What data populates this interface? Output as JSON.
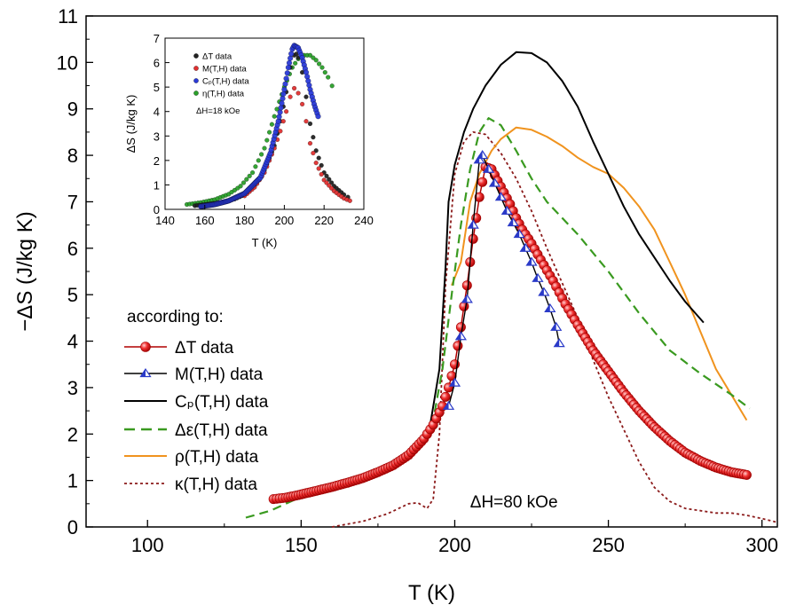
{
  "chart_data": {
    "type": "line",
    "main": {
      "xlabel": "T (K)",
      "ylabel": "−ΔS (J/kg K)",
      "xlim": [
        80,
        305
      ],
      "ylim": [
        0,
        11
      ],
      "xticks": [
        100,
        150,
        200,
        250,
        300
      ],
      "yticks": [
        0,
        1,
        2,
        3,
        4,
        5,
        6,
        7,
        8,
        9,
        10,
        11
      ],
      "legend_title": "according to:",
      "legend_position": "left",
      "annotation": "ΔH=80 kOe",
      "series": [
        {
          "name": "ΔT data",
          "style": "red-spheres",
          "color": "#e02020",
          "points": [
            [
              141,
              0.6
            ],
            [
              145,
              0.63
            ],
            [
              150,
              0.7
            ],
            [
              155,
              0.78
            ],
            [
              160,
              0.86
            ],
            [
              165,
              0.95
            ],
            [
              170,
              1.05
            ],
            [
              175,
              1.18
            ],
            [
              180,
              1.33
            ],
            [
              185,
              1.55
            ],
            [
              190,
              1.9
            ],
            [
              193,
              2.2
            ],
            [
              196,
              2.6
            ],
            [
              198,
              3.0
            ],
            [
              200,
              3.5
            ],
            [
              202,
              4.3
            ],
            [
              204,
              5.2
            ],
            [
              206,
              6.2
            ],
            [
              208,
              7.1
            ],
            [
              210,
              7.75
            ],
            [
              212,
              7.7
            ],
            [
              214,
              7.45
            ],
            [
              216,
              7.2
            ],
            [
              218,
              6.95
            ],
            [
              220,
              6.65
            ],
            [
              222,
              6.4
            ],
            [
              225,
              6.1
            ],
            [
              228,
              5.75
            ],
            [
              232,
              5.3
            ],
            [
              236,
              4.8
            ],
            [
              240,
              4.35
            ],
            [
              245,
              3.8
            ],
            [
              250,
              3.35
            ],
            [
              255,
              2.9
            ],
            [
              260,
              2.5
            ],
            [
              265,
              2.15
            ],
            [
              270,
              1.85
            ],
            [
              275,
              1.6
            ],
            [
              280,
              1.42
            ],
            [
              285,
              1.28
            ],
            [
              290,
              1.18
            ],
            [
              295,
              1.12
            ]
          ]
        },
        {
          "name": "M(T,H) data",
          "style": "blue-triangles",
          "color": "#3050d0",
          "points": [
            [
              198,
              2.6
            ],
            [
              200,
              3.1
            ],
            [
              202,
              4.1
            ],
            [
              204,
              4.9
            ],
            [
              206,
              6.5
            ],
            [
              208,
              7.9
            ],
            [
              209,
              8.0
            ],
            [
              211,
              7.7
            ],
            [
              213,
              7.4
            ],
            [
              215,
              7.1
            ],
            [
              217,
              6.8
            ],
            [
              219,
              6.55
            ],
            [
              221,
              6.3
            ],
            [
              223,
              6.0
            ],
            [
              225,
              5.7
            ],
            [
              227,
              5.35
            ],
            [
              229,
              5.05
            ],
            [
              231,
              4.7
            ],
            [
              233,
              4.3
            ],
            [
              234,
              3.95
            ]
          ]
        },
        {
          "name": "Cₚ(T,H) data",
          "style": "solid",
          "color": "#000000",
          "points": [
            [
              150,
              0.72
            ],
            [
              160,
              0.87
            ],
            [
              170,
              1.05
            ],
            [
              180,
              1.3
            ],
            [
              188,
              1.7
            ],
            [
              192,
              2.2
            ],
            [
              195,
              3.4
            ],
            [
              197,
              5.6
            ],
            [
              198,
              7.0
            ],
            [
              200,
              7.8
            ],
            [
              203,
              8.5
            ],
            [
              206,
              9.0
            ],
            [
              210,
              9.5
            ],
            [
              215,
              9.95
            ],
            [
              220,
              10.22
            ],
            [
              225,
              10.2
            ],
            [
              230,
              10.0
            ],
            [
              235,
              9.6
            ],
            [
              240,
              9.05
            ],
            [
              245,
              8.3
            ],
            [
              250,
              7.6
            ],
            [
              255,
              6.9
            ],
            [
              260,
              6.3
            ],
            [
              265,
              5.8
            ],
            [
              270,
              5.3
            ],
            [
              275,
              4.85
            ],
            [
              281,
              4.4
            ]
          ]
        },
        {
          "name": "Δε(T,H) data",
          "style": "dashed",
          "color": "#3a9a20",
          "points": [
            [
              132,
              0.2
            ],
            [
              140,
              0.35
            ],
            [
              150,
              0.65
            ],
            [
              160,
              0.9
            ],
            [
              170,
              1.1
            ],
            [
              180,
              1.35
            ],
            [
              186,
              1.55
            ],
            [
              190,
              1.9
            ],
            [
              193,
              2.3
            ],
            [
              196,
              3.4
            ],
            [
              199,
              5.0
            ],
            [
              202,
              6.5
            ],
            [
              205,
              7.7
            ],
            [
              208,
              8.5
            ],
            [
              211,
              8.8
            ],
            [
              215,
              8.65
            ],
            [
              220,
              8.1
            ],
            [
              225,
              7.5
            ],
            [
              230,
              7.0
            ],
            [
              240,
              6.3
            ],
            [
              250,
              5.5
            ],
            [
              260,
              4.6
            ],
            [
              270,
              3.8
            ],
            [
              280,
              3.3
            ],
            [
              290,
              2.85
            ],
            [
              296,
              2.55
            ]
          ]
        },
        {
          "name": "ρ(T,H) data",
          "style": "solid",
          "color": "#f0931e",
          "points": [
            [
              199,
              5.2
            ],
            [
              202,
              5.7
            ],
            [
              205,
              7.0
            ],
            [
              208,
              7.6
            ],
            [
              212,
              8.1
            ],
            [
              215,
              8.35
            ],
            [
              220,
              8.6
            ],
            [
              225,
              8.55
            ],
            [
              230,
              8.4
            ],
            [
              235,
              8.2
            ],
            [
              240,
              7.95
            ],
            [
              245,
              7.75
            ],
            [
              250,
              7.6
            ],
            [
              255,
              7.3
            ],
            [
              260,
              6.9
            ],
            [
              265,
              6.4
            ],
            [
              270,
              5.7
            ],
            [
              275,
              5.0
            ],
            [
              280,
              4.2
            ],
            [
              285,
              3.4
            ],
            [
              290,
              2.85
            ],
            [
              295,
              2.3
            ]
          ]
        },
        {
          "name": "κ(T,H) data",
          "style": "dotted",
          "color": "#8b1a1a",
          "points": [
            [
              160,
              0.0
            ],
            [
              170,
              0.12
            ],
            [
              178,
              0.28
            ],
            [
              185,
              0.5
            ],
            [
              188,
              0.52
            ],
            [
              191,
              0.4
            ],
            [
              193,
              0.6
            ],
            [
              195,
              2.0
            ],
            [
              197,
              5.2
            ],
            [
              200,
              7.6
            ],
            [
              203,
              8.3
            ],
            [
              206,
              8.5
            ],
            [
              210,
              8.45
            ],
            [
              215,
              8.05
            ],
            [
              220,
              7.5
            ],
            [
              225,
              6.8
            ],
            [
              230,
              6.0
            ],
            [
              235,
              5.25
            ],
            [
              240,
              4.5
            ],
            [
              245,
              3.6
            ],
            [
              250,
              2.8
            ],
            [
              255,
              2.1
            ],
            [
              260,
              1.4
            ],
            [
              265,
              0.85
            ],
            [
              270,
              0.55
            ],
            [
              275,
              0.4
            ],
            [
              280,
              0.35
            ],
            [
              285,
              0.3
            ],
            [
              290,
              0.3
            ],
            [
              295,
              0.25
            ],
            [
              300,
              0.18
            ],
            [
              305,
              0.1
            ]
          ]
        }
      ]
    },
    "inset": {
      "xlabel": "T (K)",
      "ylabel": "ΔS (J/kg K)",
      "xlim": [
        140,
        240
      ],
      "ylim": [
        0,
        7
      ],
      "xticks": [
        140,
        160,
        180,
        200,
        220,
        240
      ],
      "yticks": [
        0,
        1,
        2,
        3,
        4,
        5,
        6,
        7
      ],
      "annotation": "ΔH=18 kOe",
      "legend_position": "top-left",
      "series": [
        {
          "name": "ΔT data",
          "color": "#222222",
          "points": [
            [
              155,
              0.15
            ],
            [
              160,
              0.2
            ],
            [
              165,
              0.25
            ],
            [
              170,
              0.32
            ],
            [
              175,
              0.42
            ],
            [
              180,
              0.6
            ],
            [
              185,
              0.95
            ],
            [
              190,
              1.6
            ],
            [
              195,
              2.6
            ],
            [
              198,
              3.6
            ],
            [
              201,
              4.8
            ],
            [
              203,
              5.8
            ],
            [
              205,
              6.3
            ],
            [
              206,
              6.35
            ],
            [
              207,
              6.2
            ],
            [
              209,
              5.6
            ],
            [
              211,
              4.6
            ],
            [
              213,
              3.5
            ],
            [
              216,
              2.4
            ],
            [
              220,
              1.5
            ],
            [
              225,
              0.95
            ],
            [
              230,
              0.6
            ],
            [
              232,
              0.5
            ]
          ]
        },
        {
          "name": "M(T,H) data",
          "color": "#e03030",
          "points": [
            [
              180,
              0.55
            ],
            [
              185,
              0.9
            ],
            [
              190,
              1.5
            ],
            [
              195,
              2.5
            ],
            [
              198,
              3.2
            ],
            [
              201,
              4.0
            ],
            [
              203,
              4.6
            ],
            [
              205,
              4.95
            ],
            [
              207,
              4.75
            ],
            [
              209,
              4.3
            ],
            [
              211,
              3.6
            ],
            [
              213,
              2.7
            ],
            [
              216,
              1.9
            ],
            [
              220,
              1.2
            ],
            [
              225,
              0.75
            ],
            [
              230,
              0.45
            ],
            [
              233,
              0.35
            ]
          ]
        },
        {
          "name": "Cₚ(T,H) data",
          "color": "#2a3ad8",
          "points": [
            [
              158,
              0.12
            ],
            [
              165,
              0.2
            ],
            [
              172,
              0.35
            ],
            [
              180,
              0.65
            ],
            [
              188,
              1.3
            ],
            [
              193,
              2.3
            ],
            [
              197,
              3.6
            ],
            [
              200,
              4.9
            ],
            [
              202,
              5.8
            ],
            [
              204,
              6.55
            ],
            [
              205,
              6.7
            ],
            [
              207,
              6.6
            ],
            [
              209,
              6.2
            ],
            [
              211,
              5.6
            ],
            [
              213,
              4.9
            ],
            [
              215,
              4.3
            ],
            [
              217,
              3.8
            ]
          ]
        },
        {
          "name": "η(T,H) data",
          "color": "#2aa02a",
          "points": [
            [
              151,
              0.2
            ],
            [
              158,
              0.28
            ],
            [
              165,
              0.4
            ],
            [
              172,
              0.62
            ],
            [
              178,
              0.95
            ],
            [
              184,
              1.5
            ],
            [
              190,
              2.5
            ],
            [
              195,
              3.8
            ],
            [
              200,
              5.0
            ],
            [
              204,
              5.8
            ],
            [
              207,
              6.15
            ],
            [
              210,
              6.3
            ],
            [
              213,
              6.3
            ],
            [
              216,
              6.1
            ],
            [
              219,
              5.8
            ],
            [
              222,
              5.4
            ],
            [
              224,
              5.05
            ]
          ]
        }
      ]
    }
  }
}
